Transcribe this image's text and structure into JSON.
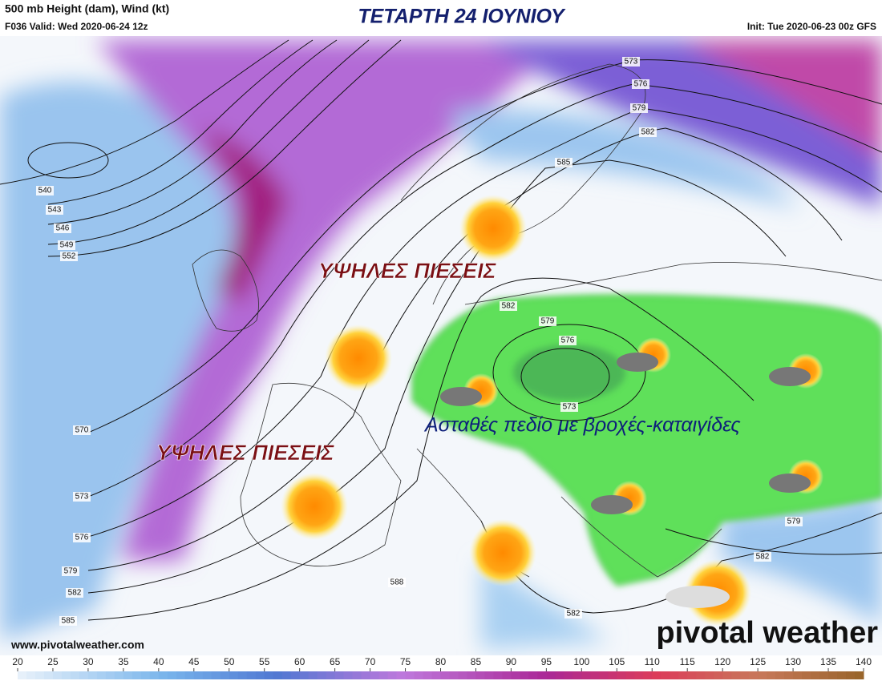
{
  "header": {
    "title": "500 mb Height (dam), Wind (kt)",
    "valid": "F036 Valid: Wed 2020-06-24 12z",
    "init": "Init: Tue 2020-06-23 00z GFS",
    "headline": "ΤΕΤΑΡΤΗ 24 ΙΟΥΝΙΟΥ"
  },
  "annotations": [
    "ΥΨΗΛΕΣ ΠΙΕΣΕΙΣ",
    "ΥΨΗΛΕΣ ΠΙΕΣΕΙΣ",
    "Ασταθές πεδίο με βροχές-καταιγίδες"
  ],
  "contour_labels": [
    "540",
    "543",
    "546",
    "549",
    "552",
    "570",
    "573",
    "576",
    "579",
    "582",
    "585",
    "573",
    "576",
    "579",
    "582",
    "585",
    "582",
    "579",
    "576",
    "573",
    "588",
    "582",
    "579",
    "582"
  ],
  "colorbar": {
    "ticks": [
      20,
      25,
      30,
      35,
      40,
      45,
      50,
      55,
      60,
      65,
      70,
      75,
      80,
      85,
      90,
      95,
      100,
      105,
      110,
      115,
      120,
      125,
      130,
      135,
      140
    ]
  },
  "footer": {
    "website": "www.pivotalweather.com",
    "logo": "pivotal weather"
  }
}
